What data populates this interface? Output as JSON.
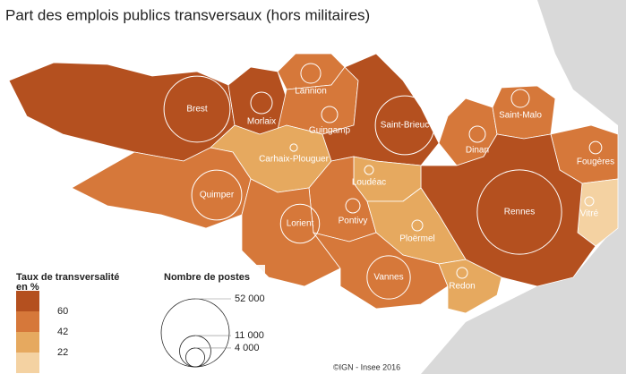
{
  "title": "Part des emplois publics transversaux (hors militaires)",
  "color_legend": {
    "title": "Taux de transversalité en %",
    "breaks": [
      60,
      42,
      22
    ],
    "colors": [
      "#b4501f",
      "#d6783a",
      "#e6a95f",
      "#f4d2a2"
    ]
  },
  "size_legend": {
    "title": "Nombre de postes",
    "sizes": [
      {
        "value": 52000,
        "label": "52 000"
      },
      {
        "value": 11000,
        "label": "11 000"
      },
      {
        "value": 4000,
        "label": "4 000"
      }
    ]
  },
  "source": "©IGN - Insee 2016",
  "cities": [
    {
      "name": "Brest",
      "postes": 49000,
      "color": "#b4501f"
    },
    {
      "name": "Morlaix",
      "postes": 5200,
      "color": "#b4501f"
    },
    {
      "name": "Lannion",
      "postes": 4400,
      "color": "#d6783a"
    },
    {
      "name": "Guingamp",
      "postes": 2900,
      "color": "#d6783a"
    },
    {
      "name": "Carhaix-Plouguer",
      "postes": 600,
      "color": "#e6a95f"
    },
    {
      "name": "Quimper",
      "postes": 28000,
      "color": "#d6783a"
    },
    {
      "name": "Saint-Brieuc",
      "postes": 39000,
      "color": "#b4501f"
    },
    {
      "name": "Dinan",
      "postes": 2900,
      "color": "#d6783a"
    },
    {
      "name": "Saint-Malo",
      "postes": 3600,
      "color": "#d6783a"
    },
    {
      "name": "Fougères",
      "postes": 1700,
      "color": "#d6783a"
    },
    {
      "name": "Vitré",
      "postes": 900,
      "color": "#f4d2a2"
    },
    {
      "name": "Rennes",
      "postes": 80000,
      "color": "#b4501f"
    },
    {
      "name": "Loudéac",
      "postes": 900,
      "color": "#e6a95f"
    },
    {
      "name": "Pontivy",
      "postes": 2300,
      "color": "#d6783a"
    },
    {
      "name": "Lorient",
      "postes": 17000,
      "color": "#d6783a"
    },
    {
      "name": "Ploërmel",
      "postes": 1300,
      "color": "#e6a95f"
    },
    {
      "name": "Vannes",
      "postes": 21000,
      "color": "#d6783a"
    },
    {
      "name": "Redon",
      "postes": 1300,
      "color": "#e6a95f"
    }
  ]
}
